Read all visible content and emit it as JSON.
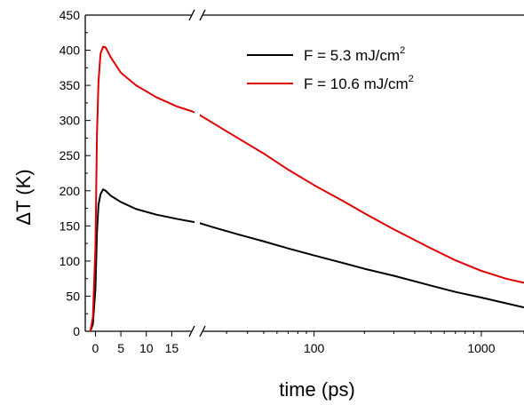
{
  "chart_data": {
    "type": "line",
    "title": "",
    "xlabel": "time (ps)",
    "ylabel_delta": "Δ",
    "ylabel": "T (K)",
    "axis_break": true,
    "x_scale": "linear segment (-2 to 20 ps) then log (20 to 1800 ps)",
    "xlim": [
      -2,
      1800
    ],
    "ylim": [
      0,
      450
    ],
    "grid": false,
    "legend_position": "top-right",
    "x_ticks": [
      {
        "value": 0,
        "label": "0"
      },
      {
        "value": 5,
        "label": "5"
      },
      {
        "value": 10,
        "label": "10"
      },
      {
        "value": 15,
        "label": "15"
      },
      {
        "value": 100,
        "label": "100"
      },
      {
        "value": 1000,
        "label": "1000"
      }
    ],
    "y_ticks": [
      {
        "value": 0,
        "label": "0"
      },
      {
        "value": 50,
        "label": "50"
      },
      {
        "value": 100,
        "label": "100"
      },
      {
        "value": 150,
        "label": "150"
      },
      {
        "value": 200,
        "label": "200"
      },
      {
        "value": 250,
        "label": "250"
      },
      {
        "value": 300,
        "label": "300"
      },
      {
        "value": 350,
        "label": "350"
      },
      {
        "value": 400,
        "label": "400"
      },
      {
        "value": 450,
        "label": "450"
      }
    ],
    "series": [
      {
        "name_main": "F = 5.3 mJ/cm",
        "name_sup": "2",
        "color": "#000000",
        "x": [
          -1,
          -0.5,
          0,
          0.3,
          0.6,
          1,
          1.5,
          2,
          3,
          5,
          8,
          12,
          16,
          19,
          20,
          25,
          35,
          50,
          70,
          100,
          150,
          200,
          300,
          500,
          700,
          1000,
          1400,
          1800
        ],
        "y": [
          0,
          10,
          60,
          140,
          180,
          195,
          202,
          200,
          193,
          184,
          174,
          166,
          160,
          156,
          155,
          148,
          138,
          128,
          118,
          108,
          97,
          89,
          79,
          65,
          56,
          48,
          40,
          34
        ]
      },
      {
        "name_main": "F = 10.6 mJ/cm",
        "name_sup": "2",
        "color": "#e00000",
        "x": [
          -1,
          -0.5,
          0,
          0.3,
          0.6,
          1,
          1.5,
          2,
          3,
          5,
          8,
          12,
          16,
          19,
          20,
          25,
          35,
          50,
          70,
          100,
          150,
          200,
          300,
          500,
          700,
          1000,
          1400,
          1800
        ],
        "y": [
          0,
          20,
          120,
          280,
          355,
          395,
          405,
          404,
          390,
          368,
          350,
          333,
          320,
          313,
          310,
          296,
          275,
          253,
          230,
          208,
          185,
          168,
          145,
          118,
          101,
          86,
          75,
          69
        ]
      }
    ]
  }
}
